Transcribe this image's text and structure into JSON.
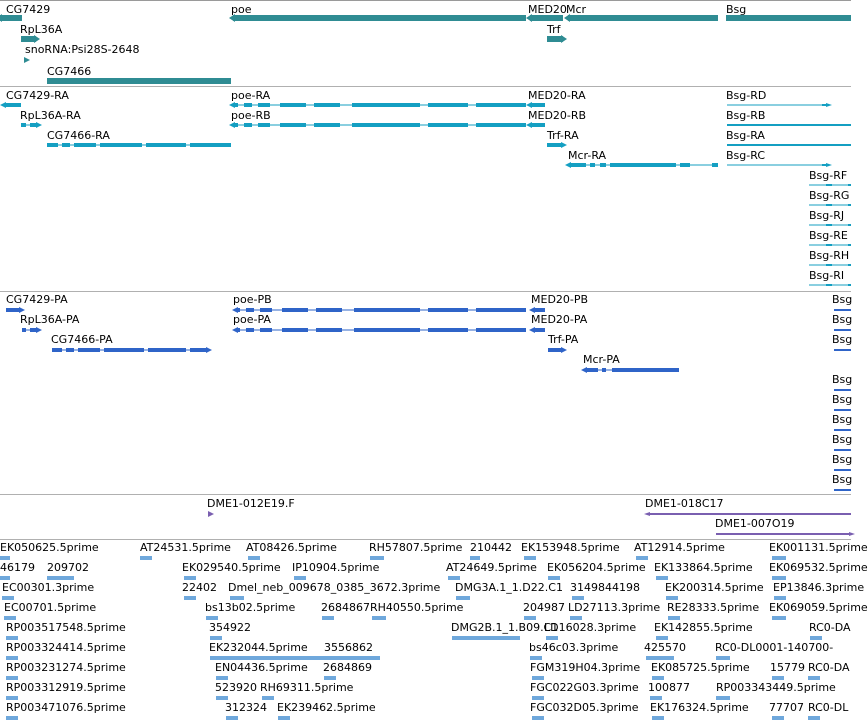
{
  "colors": {
    "gene": "#2f8c93",
    "transcript": "#149fc2",
    "protein": "#2f64c8",
    "clone": "#7a5fb0",
    "est": "#6fa8dc",
    "separator": "#b0b0b0"
  },
  "tracks": {
    "genes": {
      "items": [
        {
          "label": "CG7429",
          "strand": "-"
        },
        {
          "label": "poe",
          "strand": "-"
        },
        {
          "label": "MED20",
          "strand": "-"
        },
        {
          "label": "Mcr",
          "strand": "-"
        },
        {
          "label": "Bsg",
          "strand": "+"
        },
        {
          "label": "RpL36A",
          "strand": "+"
        },
        {
          "label": "snoRNA:Psi28S-2648",
          "strand": "+"
        },
        {
          "label": "Trf",
          "strand": "+"
        },
        {
          "label": "CG7466",
          "strand": "-"
        }
      ]
    },
    "transcripts": {
      "items": [
        {
          "label": "CG7429-RA"
        },
        {
          "label": "poe-RA"
        },
        {
          "label": "MED20-RA"
        },
        {
          "label": "Bsg-RD"
        },
        {
          "label": "RpL36A-RA"
        },
        {
          "label": "poe-RB"
        },
        {
          "label": "MED20-RB"
        },
        {
          "label": "Bsg-RB"
        },
        {
          "label": "CG7466-RA"
        },
        {
          "label": "Trf-RA"
        },
        {
          "label": "Bsg-RA"
        },
        {
          "label": "Mcr-RA"
        },
        {
          "label": "Bsg-RC"
        },
        {
          "label": "Bsg-RF"
        },
        {
          "label": "Bsg-RG"
        },
        {
          "label": "Bsg-RJ"
        },
        {
          "label": "Bsg-RE"
        },
        {
          "label": "Bsg-RH"
        },
        {
          "label": "Bsg-RI"
        }
      ]
    },
    "proteins": {
      "items": [
        {
          "label": "CG7429-PA"
        },
        {
          "label": "poe-PB"
        },
        {
          "label": "MED20-PB"
        },
        {
          "label": "RpL36A-PA"
        },
        {
          "label": "poe-PA"
        },
        {
          "label": "MED20-PA"
        },
        {
          "label": "CG7466-PA"
        },
        {
          "label": "Trf-PA"
        },
        {
          "label": "Mcr-PA"
        },
        {
          "label": "Bsg"
        }
      ]
    },
    "clones": {
      "items": [
        {
          "label": "DME1-012E19.F"
        },
        {
          "label": "DME1-018C17"
        },
        {
          "label": "DME1-007O19"
        }
      ]
    },
    "ests": {
      "items": [
        {
          "label": "EK050625.5prime"
        },
        {
          "label": "AT24531.5prime"
        },
        {
          "label": "AT08426.5prime"
        },
        {
          "label": "RH57807.5prime"
        },
        {
          "label": "210442"
        },
        {
          "label": "EK153948.5prime"
        },
        {
          "label": "AT12914.5prime"
        },
        {
          "label": "EK001131.5prime"
        },
        {
          "label": "46179"
        },
        {
          "label": "209702"
        },
        {
          "label": "EK029540.5prime"
        },
        {
          "label": "IP10904.5prime"
        },
        {
          "label": "AT24649.5prime"
        },
        {
          "label": "EK056204.5prime"
        },
        {
          "label": "EK133864.5prime"
        },
        {
          "label": "EK069532.5prime"
        },
        {
          "label": "EC00301.3prime"
        },
        {
          "label": "22402"
        },
        {
          "label": "Dmel_neb_009678_0385_3672.3prime"
        },
        {
          "label": "DMG3A.1_1.D22.C1"
        },
        {
          "label": "3149844198"
        },
        {
          "label": "EK200314.5prime"
        },
        {
          "label": "EP13846.3prime"
        },
        {
          "label": "EC00701.5prime"
        },
        {
          "label": "bs13b02.5prime"
        },
        {
          "label": "2684867"
        },
        {
          "label": "RH40550.5prime"
        },
        {
          "label": "204987"
        },
        {
          "label": "LD27113.3prime"
        },
        {
          "label": "RE28333.5prime"
        },
        {
          "label": "EK069059.5prime"
        },
        {
          "label": "RP003517548.5prime"
        },
        {
          "label": "354922"
        },
        {
          "label": "DMG2B.1_1.B09.C1"
        },
        {
          "label": "LD16028.3prime"
        },
        {
          "label": "EK142855.5prime"
        },
        {
          "label": "RC0-DA"
        },
        {
          "label": "RP003324414.5prime"
        },
        {
          "label": "EK232044.5prime"
        },
        {
          "label": "3556862"
        },
        {
          "label": "bs46c03.3prime"
        },
        {
          "label": "425570"
        },
        {
          "label": "RC0-DL0001-140700-"
        },
        {
          "label": "RP003231274.5prime"
        },
        {
          "label": "EN04436.5prime"
        },
        {
          "label": "2684869"
        },
        {
          "label": "FGM319H04.3prime"
        },
        {
          "label": "EK085725.5prime"
        },
        {
          "label": "15779"
        },
        {
          "label": "RC0-DA"
        },
        {
          "label": "RP003312919.5prime"
        },
        {
          "label": "523920"
        },
        {
          "label": "RH69311.5prime"
        },
        {
          "label": "FGC022G03.3prime"
        },
        {
          "label": "100877"
        },
        {
          "label": "RP003343449.5prime"
        },
        {
          "label": "RP003471076.5prime"
        },
        {
          "label": "312324"
        },
        {
          "label": "EK239462.5prime"
        },
        {
          "label": "FGC032D05.3prime"
        },
        {
          "label": "EK176324.5prime"
        },
        {
          "label": "77707"
        },
        {
          "label": "RC0-DL"
        }
      ]
    }
  }
}
